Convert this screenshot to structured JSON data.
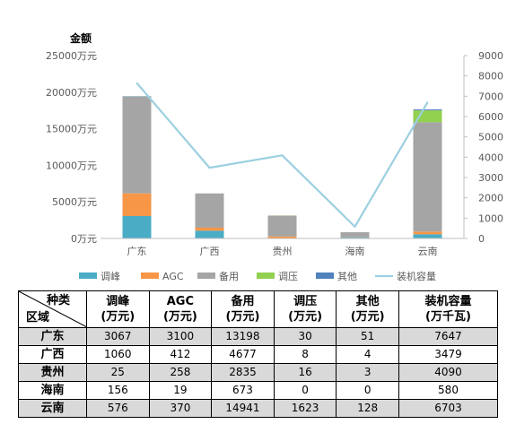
{
  "colors": {
    "tiaofeng": "#4bacc6",
    "agc": "#f79646",
    "beiyong": "#a5a5a5",
    "tiaoya": "#92d050",
    "qita": "#4f81bd",
    "capacity": "#9cd0e0"
  },
  "chart_data": {
    "type": "bar",
    "stacked": true,
    "title": "",
    "ylabel": "金额",
    "xlabel": "",
    "categories": [
      "广东",
      "广西",
      "贵州",
      "海南",
      "云南"
    ],
    "ylim": [
      0,
      25000
    ],
    "y_ticks": [
      "0万元",
      "5000万元",
      "10000万元",
      "15000万元",
      "20000万元",
      "25000万元"
    ],
    "y2lim": [
      0,
      9000
    ],
    "y2_ticks": [
      "0",
      "1000",
      "2000",
      "3000",
      "4000",
      "5000",
      "6000",
      "7000",
      "8000",
      "9000"
    ],
    "series": [
      {
        "name": "调峰",
        "type": "bar",
        "values": [
          3067,
          1060,
          25,
          156,
          576
        ]
      },
      {
        "name": "AGC",
        "type": "bar",
        "values": [
          3100,
          412,
          258,
          19,
          370
        ]
      },
      {
        "name": "备用",
        "type": "bar",
        "values": [
          13198,
          4677,
          2835,
          673,
          14941
        ]
      },
      {
        "name": "调压",
        "type": "bar",
        "values": [
          30,
          8,
          16,
          0,
          1623
        ]
      },
      {
        "name": "其他",
        "type": "bar",
        "values": [
          51,
          4,
          3,
          0,
          128
        ]
      },
      {
        "name": "装机容量",
        "type": "line",
        "axis": "right",
        "values": [
          7647,
          3479,
          4090,
          580,
          6703
        ]
      }
    ],
    "legend_position": "bottom",
    "grid": false
  },
  "table": {
    "corner_top": "种类",
    "corner_bottom": "区域",
    "headers": [
      [
        "调峰",
        "(万元)"
      ],
      [
        "AGC",
        "(万元)"
      ],
      [
        "备用",
        "(万元)"
      ],
      [
        "调压",
        "(万元)"
      ],
      [
        "其他",
        "(万元)"
      ],
      [
        "装机容量",
        "(万千瓦)"
      ]
    ],
    "rows": [
      {
        "region": "广东",
        "values": [
          "3067",
          "3100",
          "13198",
          "30",
          "51",
          "7647"
        ]
      },
      {
        "region": "广西",
        "values": [
          "1060",
          "412",
          "4677",
          "8",
          "4",
          "3479"
        ]
      },
      {
        "region": "贵州",
        "values": [
          "25",
          "258",
          "2835",
          "16",
          "3",
          "4090"
        ]
      },
      {
        "region": "海南",
        "values": [
          "156",
          "19",
          "673",
          "0",
          "0",
          "580"
        ]
      },
      {
        "region": "云南",
        "values": [
          "576",
          "370",
          "14941",
          "1623",
          "128",
          "6703"
        ]
      }
    ]
  }
}
